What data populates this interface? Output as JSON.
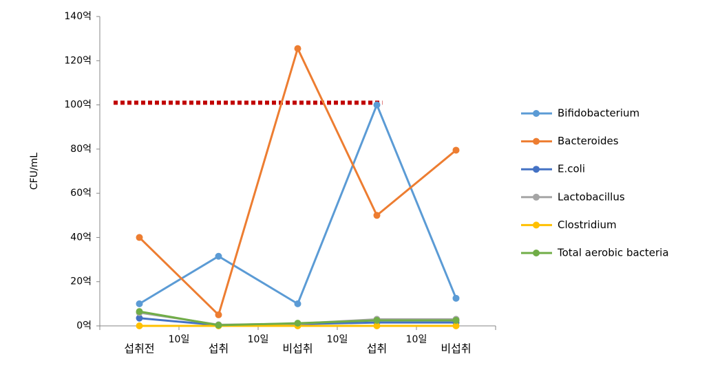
{
  "chart_data": {
    "type": "line",
    "y_label": "CFU/mL",
    "categories": [
      "섭취전",
      "섭취",
      "비섭취",
      "섭취",
      "비섭취"
    ],
    "interval_labels": [
      "10일",
      "10일",
      "10일",
      "10일"
    ],
    "series": [
      {
        "name": "Bifidobacterium",
        "color": "#5b9bd5",
        "values": [
          10,
          31.5,
          10,
          100,
          12.5
        ]
      },
      {
        "name": "Bacteroides",
        "color": "#ed7d31",
        "values": [
          40,
          5,
          125.5,
          50,
          79.5
        ]
      },
      {
        "name": "E.coli",
        "color": "#4472c4",
        "values": [
          3.5,
          0.3,
          0.8,
          1.5,
          1.5
        ]
      },
      {
        "name": "Lactobacillus",
        "color": "#a5a5a5",
        "values": [
          6,
          0.5,
          1,
          3,
          3
        ]
      },
      {
        "name": "Clostridium",
        "color": "#ffc000",
        "values": [
          0,
          0,
          0,
          0,
          0
        ]
      },
      {
        "name": "Total aerobic bacteria",
        "color": "#70ad47",
        "values": [
          6.5,
          0.3,
          1.2,
          2.5,
          2.5
        ]
      }
    ],
    "reference_line": {
      "value": 101,
      "color": "#c00000"
    },
    "ylim": [
      0,
      140
    ],
    "yticks": [
      {
        "value": 0,
        "label": "0억"
      },
      {
        "value": 20,
        "label": "20억"
      },
      {
        "value": 40,
        "label": "40억"
      },
      {
        "value": 60,
        "label": "60억"
      },
      {
        "value": 80,
        "label": "80억"
      },
      {
        "value": 100,
        "label": "100억"
      },
      {
        "value": 120,
        "label": "120억"
      },
      {
        "value": 140,
        "label": "140억"
      }
    ],
    "legend": "right",
    "grid": false
  }
}
